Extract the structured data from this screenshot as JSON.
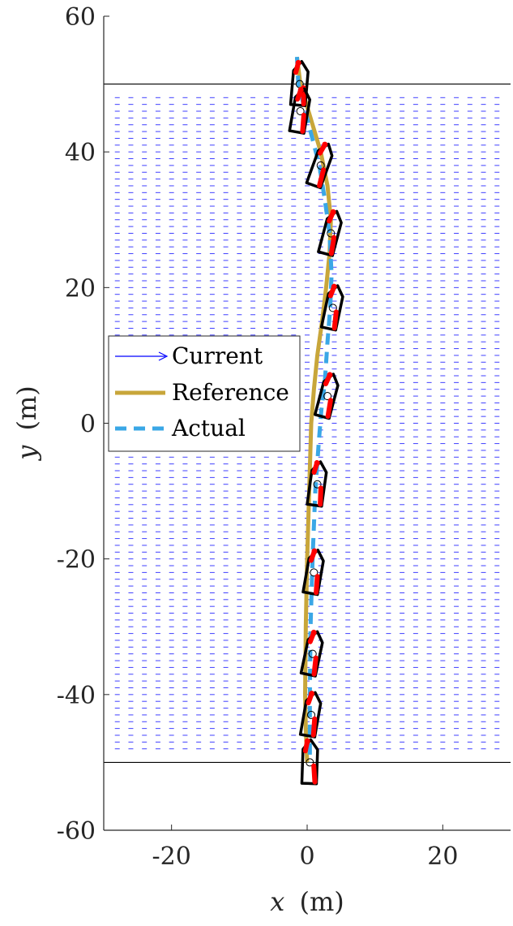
{
  "chart_data": {
    "type": "line",
    "xlabel_var": "x",
    "xlabel_unit": "(m)",
    "ylabel_var": "y",
    "ylabel_unit": "(m)",
    "xlim": [
      -30,
      30
    ],
    "ylim": [
      -60,
      60
    ],
    "xticks": [
      -20,
      0,
      20
    ],
    "yticks": [
      -60,
      -40,
      -20,
      0,
      20,
      40,
      60
    ],
    "xtick_labels": [
      "-20",
      "0",
      "20"
    ],
    "ytick_labels": [
      "-60",
      "-40",
      "-20",
      "0",
      "20",
      "40",
      "60"
    ],
    "grid": false,
    "legend_position": "center-left",
    "boundary_lines_y": [
      -50,
      50
    ],
    "current_field": {
      "x_range": [
        -28,
        28
      ],
      "y_range": [
        -48,
        48
      ],
      "direction": "+x",
      "color": "#0000ff"
    },
    "series": [
      {
        "name": "Current",
        "style": "arrow",
        "color": "#0000ff"
      },
      {
        "name": "Reference",
        "style": "solid",
        "color": "#c8a63a",
        "x": [
          -1.5,
          -1.0,
          0.5,
          2.0,
          3.0,
          3.5,
          3.3,
          2.8,
          2.2,
          1.5,
          1.0,
          0.6,
          0.3,
          0.0,
          -0.2,
          -0.3,
          -0.2,
          0.0
        ],
        "y": [
          54,
          50,
          45,
          40,
          35,
          30,
          25,
          20,
          15,
          10,
          5,
          0,
          -10,
          -20,
          -30,
          -40,
          -45,
          -50
        ]
      },
      {
        "name": "Actual",
        "style": "dashed",
        "color": "#3aa7e6",
        "x": [
          -1.5,
          -1.3,
          0.5,
          1.8,
          2.6,
          3.3,
          3.6,
          3.4,
          3.0,
          2.6,
          2.1,
          1.7,
          1.2,
          0.8,
          0.5,
          0.4,
          0.4,
          0.4
        ],
        "y": [
          54,
          50,
          43,
          38,
          33,
          28,
          22,
          17,
          12,
          6,
          2,
          -3,
          -10,
          -20,
          -30,
          -40,
          -45,
          -50
        ]
      }
    ],
    "vessels": [
      {
        "x": -1.1,
        "y": 50,
        "heading": 5
      },
      {
        "x": -1.0,
        "y": 46,
        "heading": 10
      },
      {
        "x": 2.0,
        "y": 38,
        "heading": 20
      },
      {
        "x": 3.5,
        "y": 28,
        "heading": 15
      },
      {
        "x": 3.8,
        "y": 17,
        "heading": 12
      },
      {
        "x": 3.0,
        "y": 4,
        "heading": 15
      },
      {
        "x": 1.5,
        "y": -9,
        "heading": 8
      },
      {
        "x": 1.0,
        "y": -22,
        "heading": 10
      },
      {
        "x": 0.8,
        "y": -34,
        "heading": 12
      },
      {
        "x": 0.6,
        "y": -43,
        "heading": 10
      },
      {
        "x": 0.4,
        "y": -50,
        "heading": 2
      }
    ]
  }
}
